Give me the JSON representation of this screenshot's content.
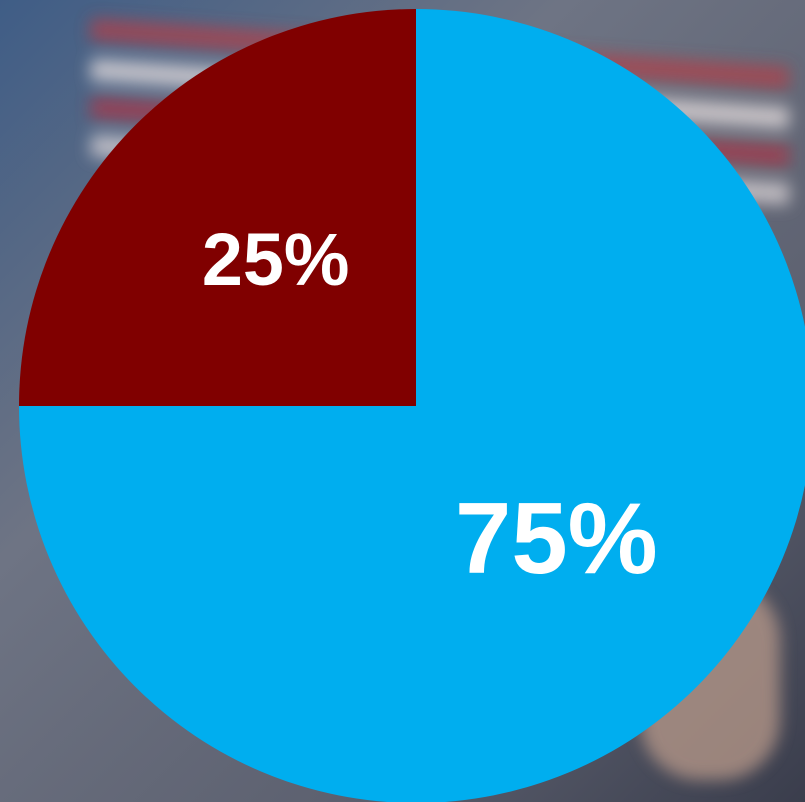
{
  "chart_data": {
    "type": "pie",
    "values": [
      75,
      25
    ],
    "value_labels": [
      "75%",
      "25%"
    ],
    "colors": [
      "#00aeef",
      "#800000"
    ]
  }
}
